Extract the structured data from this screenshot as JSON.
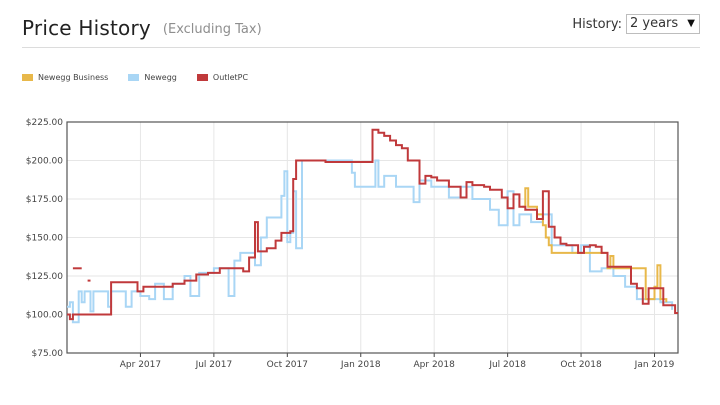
{
  "header": {
    "title": "Price History",
    "subtitle": "(Excluding Tax)",
    "history_label": "History:",
    "history_value": "2 years"
  },
  "colors": {
    "newegg_business": "#E8B84A",
    "newegg": "#A9D6F5",
    "outletpc": "#C0393B",
    "grid": "#e6e6e6",
    "axis": "#444444"
  },
  "chart_data": {
    "type": "line",
    "xlabel": "",
    "ylabel": "",
    "ylim": [
      75,
      225
    ],
    "y_ticks": [
      "$75.00",
      "$100.00",
      "$125.00",
      "$150.00",
      "$175.00",
      "$200.00",
      "$225.00"
    ],
    "y_tick_values": [
      75,
      100,
      125,
      150,
      175,
      200,
      225
    ],
    "x_ticks": [
      {
        "label": "Apr 2017",
        "t": 2017.25
      },
      {
        "label": "Jul 2017",
        "t": 2017.5
      },
      {
        "label": "Oct 2017",
        "t": 2017.75
      },
      {
        "label": "Jan 2018",
        "t": 2018.0
      },
      {
        "label": "Apr 2018",
        "t": 2018.25
      },
      {
        "label": "Jul 2018",
        "t": 2018.5
      },
      {
        "label": "Oct 2018",
        "t": 2018.75
      },
      {
        "label": "Jan 2019",
        "t": 2019.0
      }
    ],
    "xlim": [
      2017.0,
      2019.08
    ],
    "grid": true,
    "legend_position": "top-left",
    "series": [
      {
        "name": "Newegg Business",
        "color": "#E8B84A",
        "points": [
          [
            2018.55,
            170
          ],
          [
            2018.56,
            182
          ],
          [
            2018.57,
            170
          ],
          [
            2018.6,
            165
          ],
          [
            2018.62,
            158
          ],
          [
            2018.63,
            150
          ],
          [
            2018.64,
            145
          ],
          [
            2018.65,
            140
          ],
          [
            2018.84,
            130
          ],
          [
            2018.85,
            138
          ],
          [
            2018.86,
            130
          ],
          [
            2018.97,
            110
          ],
          [
            2019.0,
            118
          ],
          [
            2019.01,
            132
          ],
          [
            2019.02,
            110
          ],
          [
            2019.04,
            108
          ]
        ]
      },
      {
        "name": "Newegg",
        "color": "#A9D6F5",
        "points": [
          [
            2017.0,
            105
          ],
          [
            2017.01,
            108
          ],
          [
            2017.02,
            95
          ],
          [
            2017.04,
            115
          ],
          [
            2017.05,
            108
          ],
          [
            2017.06,
            115
          ],
          [
            2017.08,
            102
          ],
          [
            2017.09,
            115
          ],
          [
            2017.13,
            115
          ],
          [
            2017.14,
            105
          ],
          [
            2017.15,
            115
          ],
          [
            2017.19,
            115
          ],
          [
            2017.2,
            105
          ],
          [
            2017.22,
            115
          ],
          [
            2017.25,
            112
          ],
          [
            2017.28,
            110
          ],
          [
            2017.3,
            120
          ],
          [
            2017.33,
            110
          ],
          [
            2017.36,
            120
          ],
          [
            2017.4,
            125
          ],
          [
            2017.42,
            112
          ],
          [
            2017.45,
            127
          ],
          [
            2017.48,
            127
          ],
          [
            2017.5,
            130
          ],
          [
            2017.53,
            130
          ],
          [
            2017.55,
            112
          ],
          [
            2017.57,
            135
          ],
          [
            2017.59,
            140
          ],
          [
            2017.62,
            140
          ],
          [
            2017.64,
            132
          ],
          [
            2017.66,
            150
          ],
          [
            2017.68,
            163
          ],
          [
            2017.71,
            163
          ],
          [
            2017.73,
            177
          ],
          [
            2017.74,
            193
          ],
          [
            2017.75,
            147
          ],
          [
            2017.76,
            153
          ],
          [
            2017.77,
            180
          ],
          [
            2017.78,
            143
          ],
          [
            2017.8,
            200
          ],
          [
            2017.82,
            200
          ],
          [
            2017.95,
            200
          ],
          [
            2017.97,
            192
          ],
          [
            2017.98,
            183
          ],
          [
            2018.05,
            200
          ],
          [
            2018.06,
            183
          ],
          [
            2018.08,
            190
          ],
          [
            2018.12,
            183
          ],
          [
            2018.16,
            183
          ],
          [
            2018.18,
            173
          ],
          [
            2018.2,
            187
          ],
          [
            2018.24,
            183
          ],
          [
            2018.28,
            183
          ],
          [
            2018.3,
            176
          ],
          [
            2018.34,
            183
          ],
          [
            2018.38,
            175
          ],
          [
            2018.42,
            175
          ],
          [
            2018.44,
            168
          ],
          [
            2018.47,
            158
          ],
          [
            2018.5,
            180
          ],
          [
            2018.52,
            158
          ],
          [
            2018.54,
            165
          ],
          [
            2018.58,
            160
          ],
          [
            2018.62,
            165
          ],
          [
            2018.65,
            145
          ],
          [
            2018.68,
            145
          ],
          [
            2018.72,
            140
          ],
          [
            2018.75,
            145
          ],
          [
            2018.78,
            128
          ],
          [
            2018.82,
            130
          ],
          [
            2018.86,
            125
          ],
          [
            2018.9,
            118
          ],
          [
            2018.94,
            110
          ],
          [
            2018.98,
            110
          ],
          [
            2019.02,
            108
          ],
          [
            2019.06,
            103
          ]
        ]
      },
      {
        "name": "OutletPC",
        "color": "#C0393B",
        "points": [
          [
            2017.0,
            100
          ],
          [
            2017.01,
            97
          ],
          [
            2017.02,
            100
          ],
          [
            2017.15,
            121
          ],
          [
            2017.23,
            121
          ],
          [
            2017.24,
            115
          ],
          [
            2017.26,
            118
          ],
          [
            2017.3,
            118
          ],
          [
            2017.36,
            120
          ],
          [
            2017.4,
            122
          ],
          [
            2017.44,
            126
          ],
          [
            2017.48,
            127
          ],
          [
            2017.52,
            130
          ],
          [
            2017.56,
            130
          ],
          [
            2017.6,
            128
          ],
          [
            2017.62,
            137
          ],
          [
            2017.64,
            160
          ],
          [
            2017.65,
            141
          ],
          [
            2017.68,
            143
          ],
          [
            2017.71,
            148
          ],
          [
            2017.73,
            153
          ],
          [
            2017.76,
            154
          ],
          [
            2017.77,
            188
          ],
          [
            2017.78,
            200
          ],
          [
            2017.86,
            200
          ],
          [
            2017.88,
            199
          ],
          [
            2018.03,
            199
          ],
          [
            2018.04,
            220
          ],
          [
            2018.06,
            218
          ],
          [
            2018.08,
            216
          ],
          [
            2018.1,
            213
          ],
          [
            2018.12,
            210
          ],
          [
            2018.14,
            208
          ],
          [
            2018.16,
            200
          ],
          [
            2018.18,
            200
          ],
          [
            2018.2,
            185
          ],
          [
            2018.22,
            190
          ],
          [
            2018.24,
            189
          ],
          [
            2018.26,
            187
          ],
          [
            2018.28,
            187
          ],
          [
            2018.3,
            183
          ],
          [
            2018.32,
            183
          ],
          [
            2018.34,
            176
          ],
          [
            2018.36,
            186
          ],
          [
            2018.38,
            184
          ],
          [
            2018.4,
            184
          ],
          [
            2018.42,
            183
          ],
          [
            2018.44,
            181
          ],
          [
            2018.46,
            181
          ],
          [
            2018.48,
            176
          ],
          [
            2018.5,
            169
          ],
          [
            2018.52,
            178
          ],
          [
            2018.54,
            170
          ],
          [
            2018.56,
            168
          ],
          [
            2018.58,
            168
          ],
          [
            2018.6,
            162
          ],
          [
            2018.62,
            180
          ],
          [
            2018.64,
            157
          ],
          [
            2018.66,
            150
          ],
          [
            2018.68,
            146
          ],
          [
            2018.7,
            145
          ],
          [
            2018.72,
            145
          ],
          [
            2018.74,
            140
          ],
          [
            2018.76,
            144
          ],
          [
            2018.78,
            145
          ],
          [
            2018.8,
            144
          ],
          [
            2018.82,
            140
          ],
          [
            2018.84,
            131
          ],
          [
            2018.86,
            131
          ],
          [
            2018.9,
            131
          ],
          [
            2018.92,
            120
          ],
          [
            2018.94,
            117
          ],
          [
            2018.96,
            107
          ],
          [
            2018.98,
            117
          ],
          [
            2019.02,
            117
          ],
          [
            2019.03,
            106
          ],
          [
            2019.05,
            106
          ],
          [
            2019.07,
            101
          ],
          [
            2019.08,
            101
          ]
        ],
        "fragments": [
          [
            [
              2017.02,
              130
            ],
            [
              2017.05,
              130
            ]
          ],
          [
            [
              2017.07,
              122
            ],
            [
              2017.08,
              122
            ]
          ]
        ]
      }
    ]
  }
}
